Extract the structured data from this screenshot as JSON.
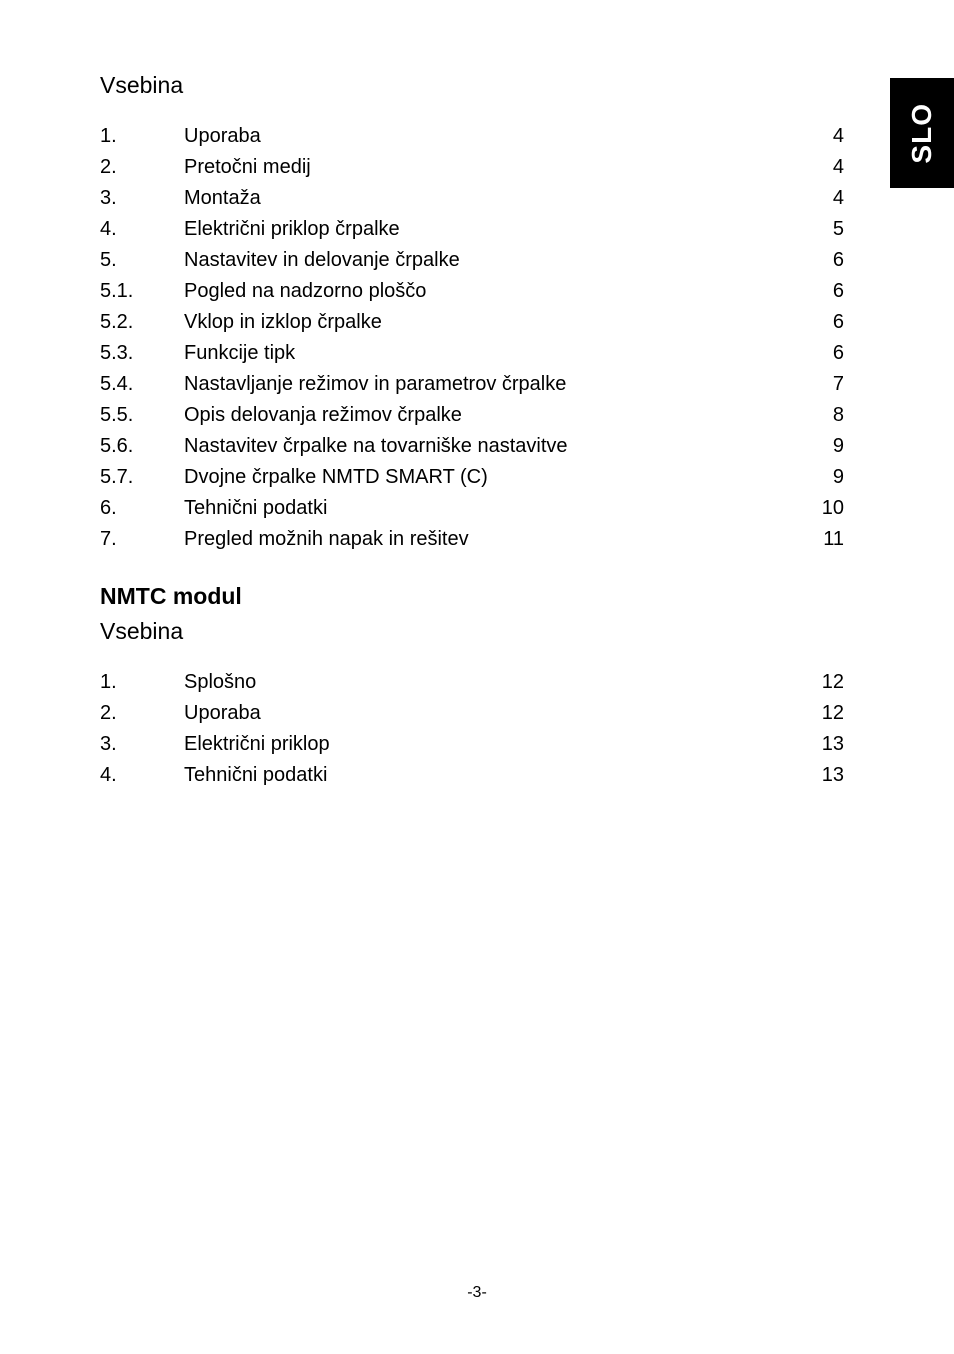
{
  "sideTab": "SLO",
  "toc1": {
    "title": "Vsebina",
    "rows": [
      {
        "num": "1.",
        "text": "Uporaba",
        "page": "4"
      },
      {
        "num": "2.",
        "text": "Pretočni medij",
        "page": "4"
      },
      {
        "num": "3.",
        "text": "Montaža",
        "page": "4"
      },
      {
        "num": "4.",
        "text": "Električni priklop črpalke",
        "page": "5"
      },
      {
        "num": "5.",
        "text": "Nastavitev in delovanje črpalke",
        "page": "6"
      },
      {
        "num": "5.1.",
        "text": "Pogled na nadzorno ploščo",
        "page": "6"
      },
      {
        "num": "5.2.",
        "text": "Vklop in izklop črpalke",
        "page": "6"
      },
      {
        "num": "5.3.",
        "text": "Funkcije tipk",
        "page": "6"
      },
      {
        "num": "5.4.",
        "text": "Nastavljanje režimov in parametrov črpalke",
        "page": "7"
      },
      {
        "num": "5.5.",
        "text": "Opis delovanja režimov črpalke",
        "page": "8"
      },
      {
        "num": "5.6.",
        "text": "Nastavitev črpalke na tovarniške nastavitve",
        "page": "9"
      },
      {
        "num": "5.7.",
        "text": "Dvojne črpalke NMTD SMART (C)",
        "page": "9"
      },
      {
        "num": "6.",
        "text": "Tehnični podatki",
        "page": "10"
      },
      {
        "num": "7.",
        "text": "Pregled možnih napak in rešitev",
        "page": "11"
      }
    ]
  },
  "sectionHeading": "NMTC modul",
  "toc2": {
    "title": "Vsebina",
    "rows": [
      {
        "num": "1.",
        "text": "Splošno",
        "page": "12"
      },
      {
        "num": "2.",
        "text": "Uporaba",
        "page": "12"
      },
      {
        "num": "3.",
        "text": "Električni priklop",
        "page": "13"
      },
      {
        "num": "4.",
        "text": "Tehnični podatki",
        "page": "13"
      }
    ]
  },
  "pageNumber": "-3-"
}
